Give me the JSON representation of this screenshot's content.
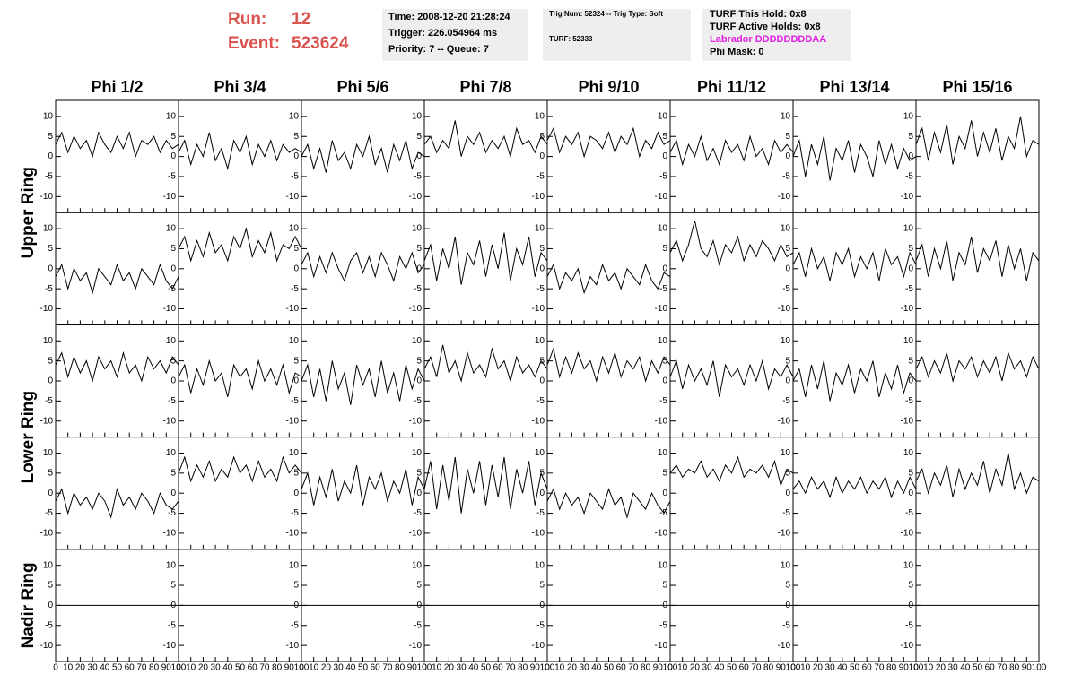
{
  "header": {
    "run_label": "Run:",
    "run": "12",
    "event_label": "Event:",
    "event": "523624",
    "time": "Time: 2008-12-20 21:28:24",
    "trigger": "Trigger: 226.054964 ms",
    "priority": "Priority: 7 -- Queue: 7",
    "trig_num": "Trig Num: 52324 -- Trig Type: Soft",
    "turf": "TURF: 52333",
    "turf_hold": "TURF This Hold: 0x8",
    "turf_active": "TURF Active Holds: 0x8",
    "labrador": "Labrador DDDDDDDDAA",
    "phi_mask": "Phi Mask: 0"
  },
  "chart_data": {
    "type": "line",
    "color": "#000000",
    "columns": [
      "Phi 1/2",
      "Phi 3/4",
      "Phi 5/6",
      "Phi 7/8",
      "Phi 9/10",
      "Phi 11/12",
      "Phi 13/14",
      "Phi 15/16"
    ],
    "ring_labels": [
      "Upper Ring",
      "Lower Ring",
      "Nadir Ring"
    ],
    "xlim": [
      0,
      100
    ],
    "xticks": [
      0,
      10,
      20,
      30,
      40,
      50,
      60,
      70,
      80,
      90,
      100
    ],
    "ylim": [
      -14,
      14
    ],
    "yticks": [
      -10,
      -5,
      0,
      5,
      10
    ],
    "x": [
      0,
      5,
      10,
      15,
      20,
      25,
      30,
      35,
      40,
      45,
      50,
      55,
      60,
      65,
      70,
      75,
      80,
      85,
      90,
      95,
      100
    ],
    "panels": [
      [
        [
          3,
          6,
          1,
          5,
          2,
          4,
          0,
          6,
          3,
          1,
          5,
          2,
          6,
          0,
          4,
          3,
          5,
          1,
          4,
          2,
          3
        ],
        [
          1,
          4,
          -2,
          3,
          0,
          6,
          -1,
          2,
          -3,
          4,
          1,
          5,
          -2,
          3,
          0,
          4,
          -1,
          3,
          1,
          2,
          1
        ],
        [
          0,
          3,
          -3,
          2,
          -4,
          4,
          -1,
          1,
          -3,
          3,
          0,
          5,
          -2,
          2,
          -4,
          3,
          -1,
          4,
          -3,
          1,
          0
        ],
        [
          3,
          5,
          1,
          4,
          2,
          9,
          0,
          5,
          3,
          6,
          1,
          4,
          2,
          5,
          0,
          7,
          3,
          4,
          1,
          5,
          3
        ],
        [
          4,
          7,
          1,
          5,
          3,
          6,
          0,
          5,
          4,
          2,
          6,
          1,
          5,
          3,
          7,
          0,
          4,
          2,
          6,
          3,
          4
        ],
        [
          1,
          4,
          -2,
          3,
          0,
          5,
          -1,
          2,
          -2,
          4,
          1,
          3,
          -1,
          5,
          0,
          2,
          -2,
          4,
          1,
          3,
          1
        ],
        [
          0,
          4,
          -5,
          3,
          -2,
          5,
          -6,
          2,
          -1,
          4,
          -4,
          3,
          0,
          -5,
          4,
          -2,
          3,
          -3,
          2,
          -1,
          0
        ],
        [
          3,
          7,
          -1,
          6,
          1,
          8,
          -2,
          5,
          2,
          9,
          0,
          6,
          1,
          7,
          -1,
          5,
          2,
          10,
          0,
          4,
          3
        ]
      ],
      [
        [
          -2,
          1,
          -5,
          0,
          -3,
          -1,
          -6,
          0,
          -2,
          -4,
          1,
          -3,
          -1,
          -5,
          0,
          -2,
          -4,
          1,
          -3,
          -5,
          -2
        ],
        [
          5,
          8,
          2,
          7,
          3,
          9,
          4,
          6,
          2,
          8,
          5,
          10,
          3,
          7,
          4,
          9,
          2,
          6,
          5,
          8,
          5
        ],
        [
          1,
          4,
          -2,
          3,
          -1,
          4,
          0,
          -3,
          2,
          4,
          -1,
          3,
          -2,
          4,
          1,
          -3,
          3,
          0,
          4,
          -1,
          1
        ],
        [
          2,
          6,
          -3,
          5,
          0,
          8,
          -4,
          4,
          1,
          7,
          -2,
          6,
          0,
          9,
          -3,
          5,
          1,
          8,
          -2,
          4,
          2
        ],
        [
          -2,
          1,
          -5,
          -1,
          -3,
          0,
          -6,
          -2,
          -4,
          1,
          -3,
          -1,
          -5,
          0,
          -2,
          -4,
          1,
          -3,
          -5,
          -1,
          -2
        ],
        [
          4,
          7,
          2,
          6,
          12,
          5,
          3,
          7,
          1,
          6,
          4,
          8,
          2,
          6,
          3,
          7,
          5,
          2,
          6,
          3,
          4
        ],
        [
          1,
          4,
          -2,
          5,
          0,
          3,
          -3,
          4,
          1,
          5,
          -2,
          3,
          0,
          4,
          -3,
          5,
          1,
          3,
          -2,
          4,
          1
        ],
        [
          2,
          6,
          -2,
          5,
          0,
          7,
          -3,
          4,
          1,
          8,
          -1,
          5,
          2,
          7,
          -2,
          6,
          0,
          5,
          -3,
          4,
          2
        ]
      ],
      [
        [
          4,
          7,
          1,
          6,
          2,
          5,
          0,
          6,
          3,
          5,
          1,
          7,
          2,
          4,
          0,
          6,
          3,
          5,
          2,
          6,
          4
        ],
        [
          1,
          4,
          -3,
          3,
          -1,
          5,
          0,
          2,
          -4,
          4,
          1,
          3,
          -2,
          5,
          0,
          3,
          -1,
          4,
          -3,
          2,
          1
        ],
        [
          0,
          4,
          -4,
          3,
          -5,
          5,
          -2,
          2,
          -6,
          4,
          -1,
          3,
          -4,
          5,
          -3,
          2,
          -5,
          4,
          -2,
          3,
          0
        ],
        [
          3,
          6,
          1,
          9,
          2,
          5,
          0,
          7,
          2,
          4,
          1,
          8,
          3,
          5,
          0,
          6,
          2,
          4,
          1,
          5,
          3
        ],
        [
          4,
          8,
          1,
          6,
          2,
          7,
          3,
          5,
          0,
          6,
          2,
          7,
          1,
          5,
          3,
          6,
          0,
          5,
          2,
          6,
          4
        ],
        [
          1,
          5,
          -2,
          4,
          0,
          3,
          -1,
          5,
          -4,
          4,
          1,
          3,
          -1,
          4,
          0,
          5,
          -2,
          3,
          1,
          4,
          1
        ],
        [
          0,
          3,
          -4,
          4,
          -2,
          5,
          -5,
          2,
          -1,
          4,
          -3,
          3,
          0,
          5,
          -4,
          2,
          -2,
          4,
          -3,
          2,
          0
        ],
        [
          3,
          6,
          1,
          5,
          2,
          7,
          0,
          5,
          3,
          6,
          1,
          5,
          2,
          6,
          0,
          7,
          3,
          5,
          1,
          6,
          3
        ]
      ],
      [
        [
          -2,
          1,
          -5,
          0,
          -3,
          -1,
          -4,
          0,
          -2,
          -6,
          1,
          -3,
          -1,
          -4,
          0,
          -2,
          -5,
          0,
          -3,
          -4,
          -2
        ],
        [
          5,
          9,
          3,
          7,
          4,
          8,
          3,
          6,
          4,
          9,
          5,
          7,
          3,
          8,
          4,
          6,
          3,
          9,
          5,
          7,
          5
        ],
        [
          1,
          5,
          -3,
          4,
          -1,
          6,
          -2,
          3,
          0,
          7,
          -3,
          4,
          1,
          5,
          -2,
          3,
          0,
          6,
          -3,
          4,
          1
        ],
        [
          1,
          8,
          -4,
          7,
          -2,
          9,
          -5,
          6,
          0,
          8,
          -3,
          7,
          -1,
          9,
          -4,
          6,
          0,
          8,
          -3,
          5,
          1
        ],
        [
          -2,
          1,
          -4,
          0,
          -3,
          -1,
          -5,
          0,
          -2,
          -4,
          1,
          -3,
          -1,
          -6,
          0,
          -2,
          -4,
          0,
          -3,
          -5,
          -2
        ],
        [
          5,
          7,
          4,
          6,
          5,
          8,
          4,
          6,
          3,
          7,
          5,
          9,
          4,
          6,
          5,
          7,
          4,
          8,
          2,
          6,
          5
        ],
        [
          1,
          3,
          0,
          4,
          1,
          3,
          -1,
          4,
          0,
          3,
          1,
          4,
          0,
          3,
          1,
          4,
          -1,
          3,
          0,
          4,
          1
        ],
        [
          3,
          6,
          0,
          5,
          2,
          7,
          -1,
          6,
          1,
          5,
          2,
          8,
          0,
          6,
          2,
          10,
          1,
          5,
          0,
          4,
          3
        ]
      ],
      [
        [
          0,
          0,
          0,
          0,
          0,
          0,
          0,
          0,
          0,
          0,
          0,
          0,
          0,
          0,
          0,
          0,
          0,
          0,
          0,
          0,
          0
        ],
        [
          0,
          0,
          0,
          0,
          0,
          0,
          0,
          0,
          0,
          0,
          0,
          0,
          0,
          0,
          0,
          0,
          0,
          0,
          0,
          0,
          0
        ],
        [
          0,
          0,
          0,
          0,
          0,
          0,
          0,
          0,
          0,
          0,
          0,
          0,
          0,
          0,
          0,
          0,
          0,
          0,
          0,
          0,
          0
        ],
        [
          0,
          0,
          0,
          0,
          0,
          0,
          0,
          0,
          0,
          0,
          0,
          0,
          0,
          0,
          0,
          0,
          0,
          0,
          0,
          0,
          0
        ],
        [
          0,
          0,
          0,
          0,
          0,
          0,
          0,
          0,
          0,
          0,
          0,
          0,
          0,
          0,
          0,
          0,
          0,
          0,
          0,
          0,
          0
        ],
        [
          0,
          0,
          0,
          0,
          0,
          0,
          0,
          0,
          0,
          0,
          0,
          0,
          0,
          0,
          0,
          0,
          0,
          0,
          0,
          0,
          0
        ],
        [
          0,
          0,
          0,
          0,
          0,
          0,
          0,
          0,
          0,
          0,
          0,
          0,
          0,
          0,
          0,
          0,
          0,
          0,
          0,
          0,
          0
        ],
        [
          0,
          0,
          0,
          0,
          0,
          0,
          0,
          0,
          0,
          0,
          0,
          0,
          0,
          0,
          0,
          0,
          0,
          0,
          0,
          0,
          0
        ]
      ]
    ]
  }
}
